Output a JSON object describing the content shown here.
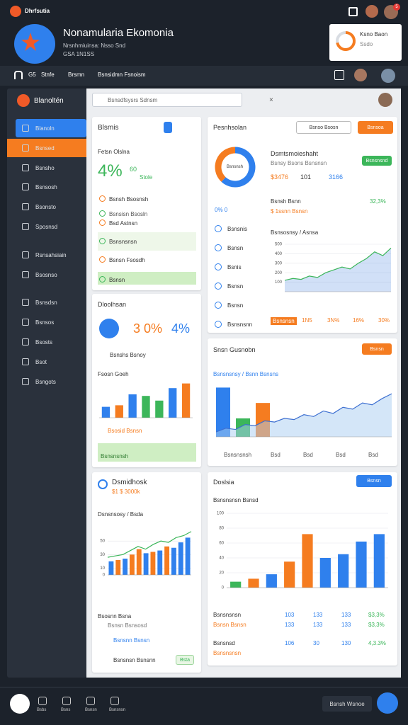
{
  "topbar": {
    "brand": "Dhrfsutia",
    "badge": "5"
  },
  "header": {
    "title": "Nonamularia Ekomonia",
    "lines": [
      "Nrsnhmiuinsa:  Nsso  Snd",
      "GSA 1N1SS"
    ],
    "widget_title": "Ksno Baon",
    "widget_sub": "Ssdo"
  },
  "nav": {
    "items": [
      "G5",
      "Stnfe",
      "Brsmn",
      "Bsnsidmn Fsnoism"
    ]
  },
  "sidebar": {
    "title": "Blanoltén",
    "items": [
      "Blanoln",
      "Bsnsed",
      "Bsnsho",
      "Bsnsosh",
      "Bsonsto",
      "Sposnsd",
      "Rsnsahsiain",
      "Bsosnso",
      "Bsnsdsn",
      "Bsnsos",
      "Bsosts",
      "Bsot",
      "Bsngots"
    ]
  },
  "search": {
    "placeholder": "Bsnsdfsysrs Sdnsm"
  },
  "card_a": {
    "title": "Blsmis",
    "label": "Fetsn Olslna",
    "big": "4%",
    "stat": "60",
    "stat_sub": "Stole",
    "rows": [
      "Bsnsh Bsosnsh",
      "Bsnsisn Bsosln",
      "Bsd Astnsn",
      "Bsnsnsnsn",
      "Bsnsn Fsosdh",
      "Bsnsn"
    ]
  },
  "card_b": {
    "title": "Dloolhsan",
    "stat1": "3 0%",
    "stat2": "4%",
    "row": "Bsnshs Bsnoy",
    "chart_title": "Fsosn Goeh",
    "legend": "Bsosid Bsnsn",
    "footer": "Bsnsnsnsh"
  },
  "card_c": {
    "title": "Dsmidhosk",
    "sub": "$1 $ 3000k",
    "chart_title": "Dsnsnsosy / Bsda",
    "row1": "Bsosnn Bsna",
    "row1_sub": "Bsnsn Bsnsosd",
    "row2": "Bsnsnn Bsnsn",
    "row3": "Bsnsnsn Bsnsnn",
    "button": "Bsta"
  },
  "card_d": {
    "title": "Pesnhsolan",
    "button": "Bsnso Bsosn",
    "action": "Bsnsoa",
    "head": "Dsmtsmoieshaht",
    "head_sub": "Bsnsy Bsons Bsnsnsn",
    "badge": "Bsnsnsnd",
    "kpis": [
      "$3476",
      "101",
      "3166"
    ],
    "donut_label": "Bsnsnsh",
    "donut_sub": "0% 0",
    "list": [
      "Bsnsnis",
      "Bsnsn",
      "Bsnis",
      "Bsnsn",
      "Bsnsn",
      "Bsnsnsnn"
    ],
    "row": "Bsnsh Bsnn",
    "row_val": "32,3%",
    "row_sub": "$ 1ssnn Bsnsn",
    "chart_title": "Bsnsosnsy / Asnsa",
    "foot": [
      "Bsnsnsn",
      "1N5",
      "3N%",
      "16%",
      "30%"
    ]
  },
  "card_e": {
    "title": "Snsn Gusnobn",
    "button": "Bsnsn",
    "chart_title": "Bsnsnsnsy / Bsnn Bsnsns",
    "foot": [
      "Bsnsnsnsh",
      "Bsd",
      "Bsd",
      "Bsd",
      "Bsd"
    ]
  },
  "card_f": {
    "title": "Doslsia",
    "button": "Bsnsn",
    "chart_title": "Bsnsnsnsn  Bsnsd",
    "r1": [
      "Bsnsnsnsn",
      "103",
      "133",
      "133",
      "$3,3%"
    ],
    "r1_sub": [
      "Bsnsn Bsnsn",
      "133",
      "133",
      "133",
      "$3,3%"
    ],
    "r2": [
      "Bsnsnsd",
      "106",
      "30",
      "130",
      "4,3.3%"
    ],
    "r2_sub": [
      "Bsnsnsnsn"
    ]
  },
  "bottom": {
    "items": [
      "Bsbs",
      "Bsns",
      "Bsnsn",
      "Bsnsnsn"
    ],
    "button": "Bsnsh Wsnoe"
  },
  "charts": {
    "header_donut": {
      "values": [
        72,
        28
      ],
      "colors": [
        "#f57c20",
        "#d9dde3"
      ]
    },
    "donut": {
      "values": [
        62,
        38
      ],
      "colors": [
        "#2f80ed",
        "#f57c20"
      ]
    },
    "b": {
      "type": "bar",
      "values": [
        14,
        16,
        30,
        28,
        22,
        38,
        44
      ],
      "colors": [
        "#2f80ed",
        "#f57c20",
        "#2f80ed",
        "#3cb65a",
        "#3cb65a",
        "#2f80ed",
        "#f57c20"
      ],
      "ylim": [
        0,
        50
      ]
    },
    "c": {
      "type": "bar_line",
      "values": [
        20,
        22,
        24,
        30,
        38,
        32,
        34,
        36,
        42,
        40,
        48,
        55
      ],
      "colors": [
        "#2f80ed",
        "#f57c20",
        "#2f80ed",
        "#f57c20",
        "#f57c20",
        "#2f80ed",
        "#f57c20",
        "#2f80ed",
        "#f57c20",
        "#2f80ed",
        "#2f80ed",
        "#2f80ed"
      ],
      "line": [
        26,
        28,
        30,
        36,
        42,
        38,
        45,
        50,
        48,
        55,
        58,
        64
      ],
      "line_color": "#3cb65a",
      "ylim": [
        0,
        70
      ],
      "yticks": [
        0,
        10,
        30,
        50
      ]
    },
    "d": {
      "type": "area",
      "values": [
        120,
        140,
        130,
        165,
        150,
        200,
        230,
        260,
        240,
        300,
        350,
        420,
        380,
        460
      ],
      "color": "#7aa6e8",
      "line_color": "#3cb65a",
      "ylim": [
        0,
        500
      ],
      "yticks": [
        100,
        200,
        300,
        400,
        500
      ]
    },
    "e": {
      "type": "bar_line",
      "values": [
        80,
        30,
        55
      ],
      "colors": [
        "#2f80ed",
        "#3cb65a",
        "#f57c20"
      ],
      "line": [
        8,
        14,
        12,
        20,
        18,
        26,
        24,
        30,
        28,
        36,
        33,
        42,
        38,
        48,
        45,
        55,
        52,
        62,
        70
      ],
      "line_color": "#3d6fd1",
      "ylim": [
        0,
        100
      ],
      "yticks": []
    },
    "f": {
      "type": "bar",
      "values": [
        8,
        12,
        18,
        35,
        72,
        40,
        45,
        62,
        72
      ],
      "colors": [
        "#3cb65a",
        "#f57c20",
        "#2f80ed",
        "#f57c20",
        "#f57c20",
        "#2f80ed",
        "#2f80ed",
        "#2f80ed",
        "#2f80ed"
      ],
      "ylim": [
        0,
        100
      ],
      "yticks": [
        0,
        20,
        40,
        60,
        80,
        100
      ]
    }
  }
}
